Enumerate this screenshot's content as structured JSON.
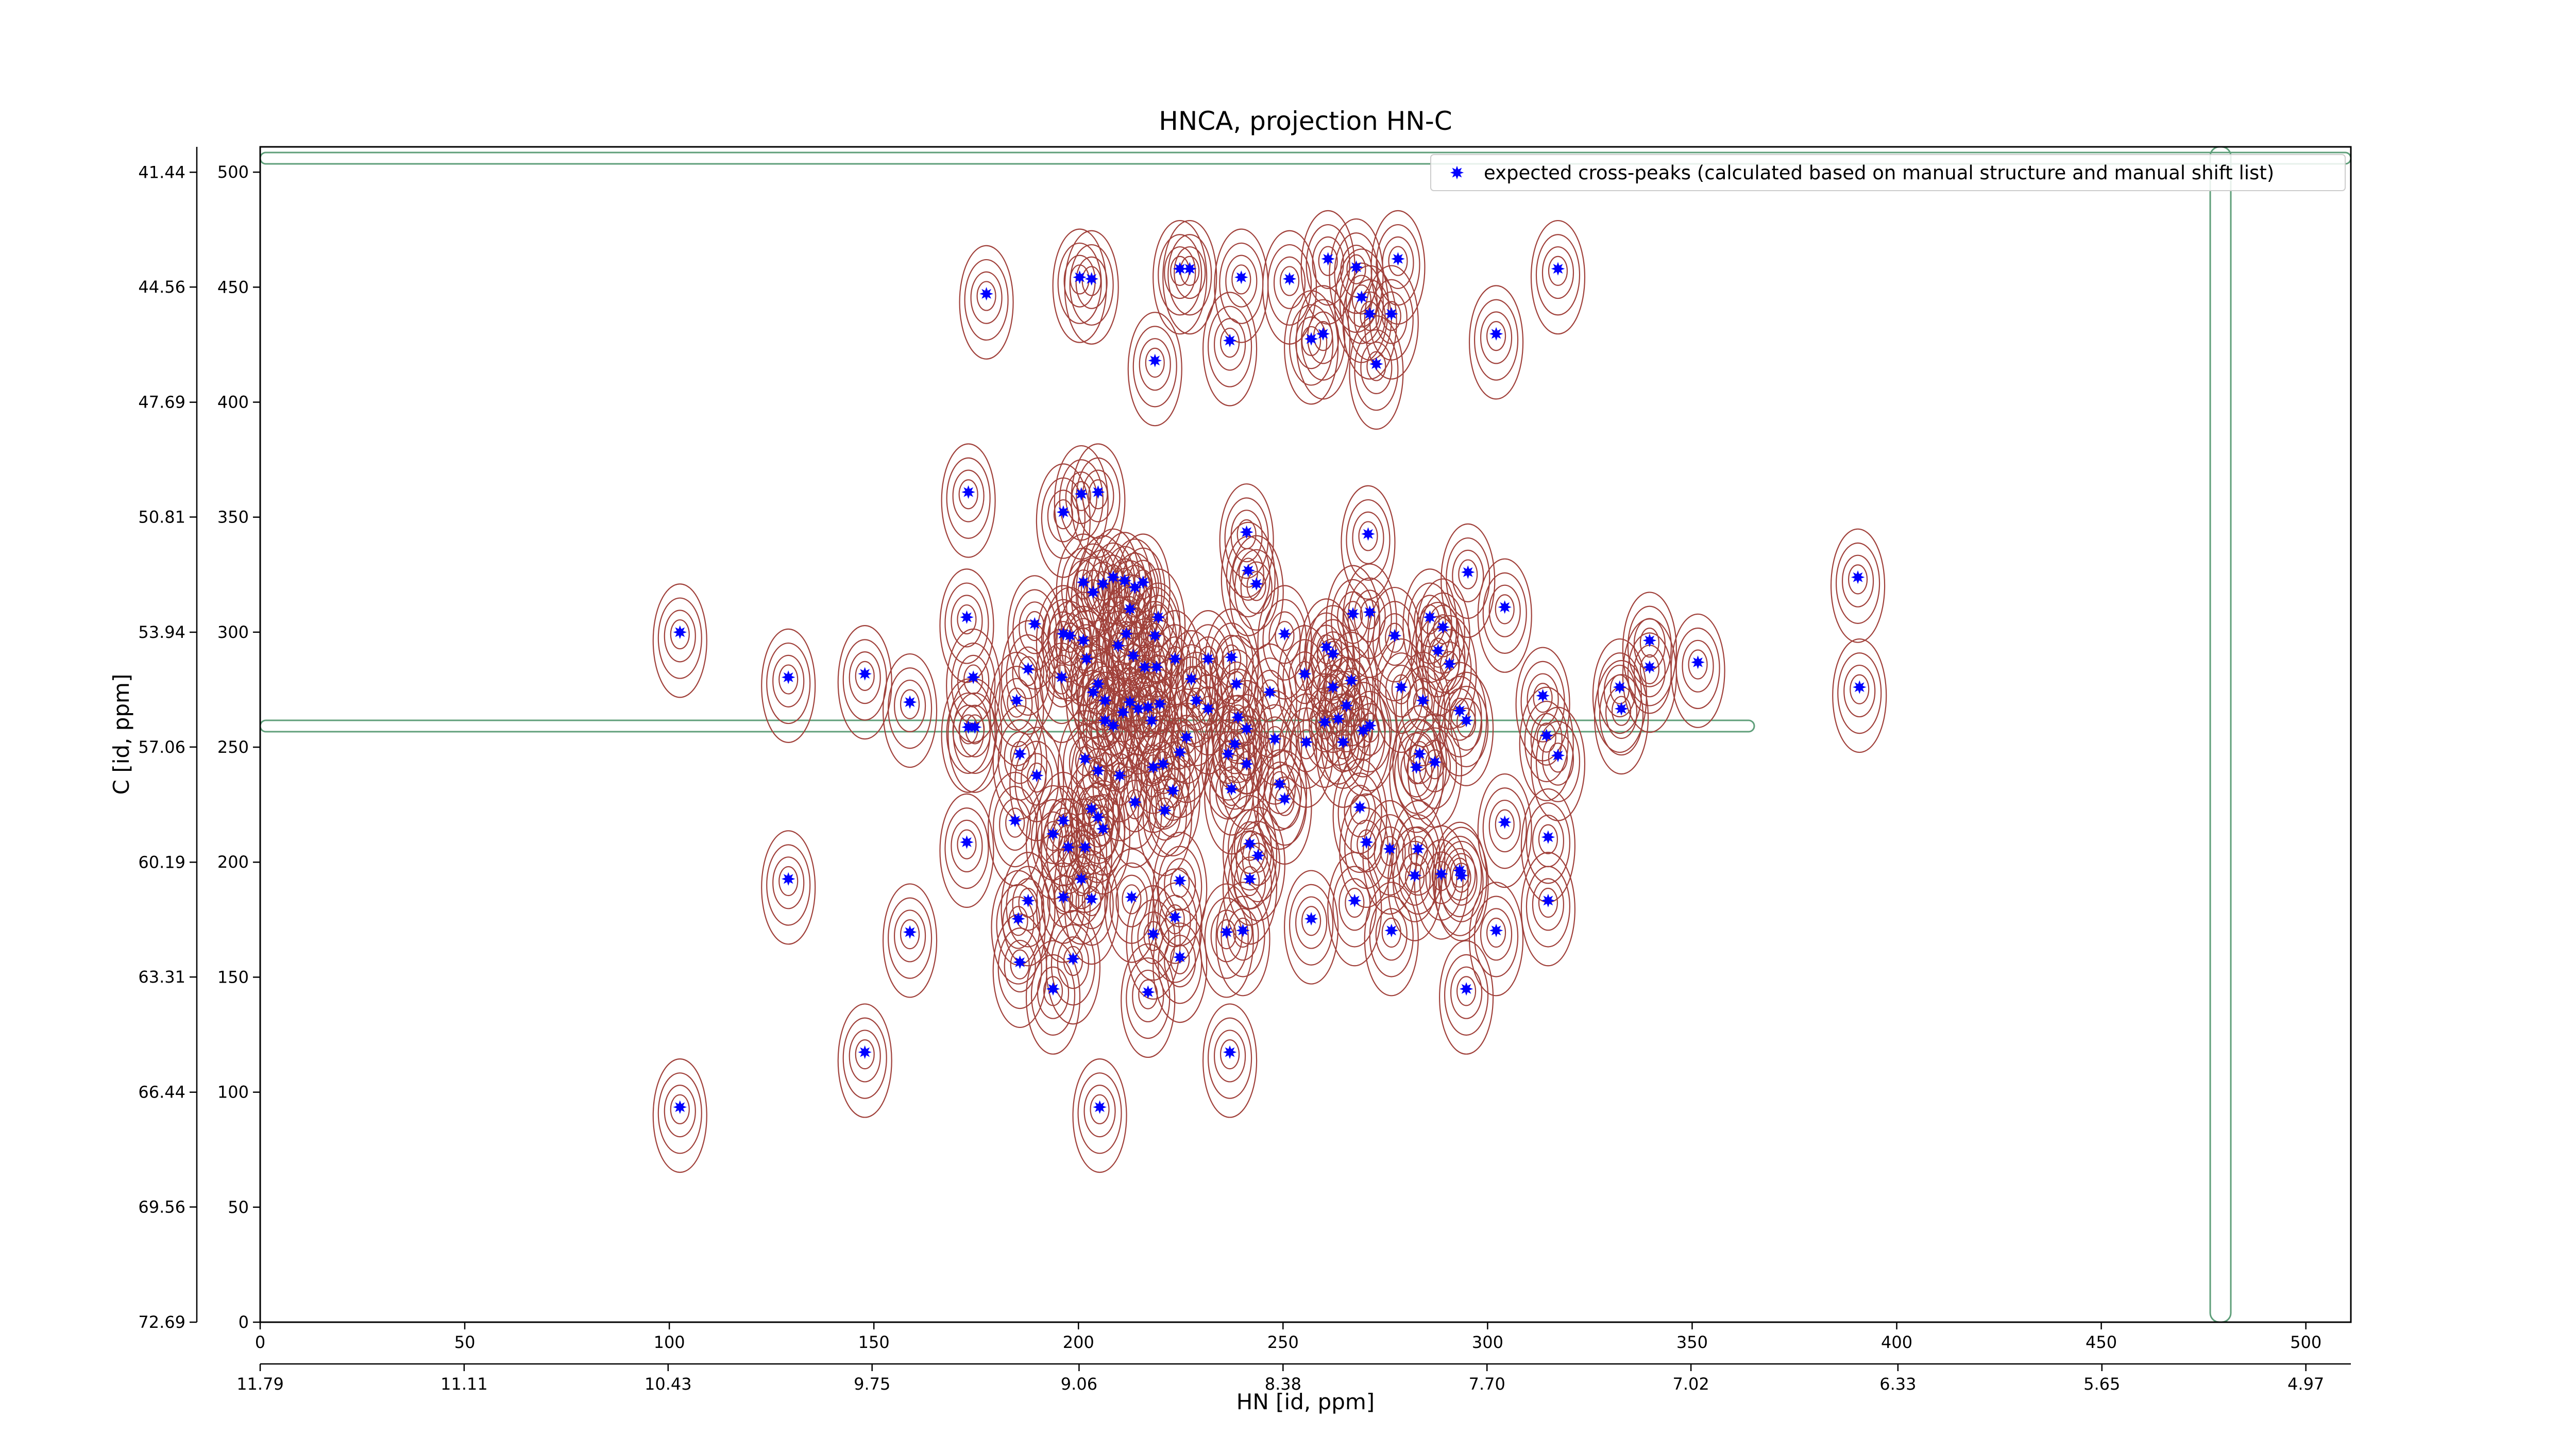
{
  "chart_data": {
    "type": "scatter",
    "title": "HNCA, projection HN-C",
    "xlabel": "HN [id, ppm]",
    "ylabel": "C [id, ppm]",
    "xlim": [
      0,
      511
    ],
    "ylim": [
      0,
      511
    ],
    "xticks": [
      0,
      50,
      100,
      150,
      200,
      250,
      300,
      350,
      400,
      450,
      500
    ],
    "yticks": [
      0,
      50,
      100,
      150,
      200,
      250,
      300,
      350,
      400,
      450,
      500
    ],
    "x2lim": [
      11.79,
      4.82
    ],
    "x2ticks": [
      11.79,
      11.11,
      10.43,
      9.75,
      9.06,
      8.38,
      {
        "value": 7.7,
        "label": "7.70"
      },
      7.02,
      6.33,
      5.65,
      4.97
    ],
    "y2lim": [
      72.69,
      40.75
    ],
    "y2ticks": [
      72.69,
      69.56,
      66.44,
      63.31,
      60.19,
      57.06,
      53.94,
      50.81,
      47.69,
      44.56,
      41.44
    ],
    "legend": "upper right",
    "series": [
      {
        "name": "expected cross-peaks (calculated based on manual structure and manual shift list)",
        "color": "#0000ff",
        "x": [
          177.5,
          200.3,
          203.2,
          224.8,
          227.2,
          239.8,
          251.6,
          261.0,
          267.9,
          278.1,
          317.2,
          269.2,
          271.2,
          276.5,
          237.0,
          256.9,
          259.8,
          272.8,
          302.1,
          218.7,
          173.1,
          196.3,
          200.7,
          204.8,
          241.1,
          270.8,
          241.5,
          243.5,
          295.2,
          390.5,
          102.6,
          129.1,
          147.8,
          158.8,
          172.7,
          174.3,
          173.1,
          174.7,
          187.7,
          189.3,
          184.9,
          185.7,
          196.3,
          197.9,
          201.2,
          195.9,
          202.0,
          203.6,
          204.8,
          206.5,
          201.2,
          203.6,
          206.0,
          208.5,
          211.3,
          213.8,
          215.8,
          212.6,
          211.7,
          219.5,
          218.7,
          209.7,
          213.4,
          216.2,
          219.1,
          223.6,
          212.6,
          214.6,
          217.0,
          217.9,
          219.9,
          206.5,
          208.5,
          210.9,
          227.6,
          231.7,
          237.4,
          238.6,
          228.8,
          231.7,
          239.0,
          241.1,
          246.8,
          250.4,
          255.3,
          260.6,
          262.2,
          266.7,
          265.5,
          263.5,
          269.6,
          271.2,
          271.2,
          267.1,
          262.2,
          277.3,
          278.9,
          284.2,
          285.9,
          287.9,
          290.7,
          293.2,
          294.8,
          289.1,
          304.2,
          313.5,
          314.4,
          317.2,
          332.3,
          332.7,
          339.6,
          339.6,
          351.4,
          390.9,
          201.6,
          189.8,
          204.8,
          210.1,
          218.3,
          220.7,
          224.8,
          226.4,
          236.6,
          238.2,
          248.0,
          241.1,
          249.2,
          250.4,
          255.7,
          260.2,
          264.7,
          268.8,
          282.6,
          287.1,
          283.4,
          172.7,
          184.5,
          193.8,
          196.3,
          197.5,
          201.6,
          203.2,
          204.8,
          206.0,
          213.8,
          221.1,
          223.1,
          237.4,
          241.9,
          243.9,
          270.4,
          276.1,
          283.0,
          288.7,
          293.2,
          304.2,
          314.8,
          129.1,
          158.8,
          185.3,
          187.7,
          196.3,
          203.2,
          200.7,
          213.0,
          224.8,
          223.6,
          218.3,
          236.2,
          240.2,
          241.9,
          256.9,
          267.5,
          276.5,
          282.2,
          293.6,
          302.1,
          314.8,
          185.7,
          193.8,
          198.7,
          217.0,
          224.8,
          237.0,
          205.2,
          147.8,
          102.6,
          294.8
        ],
        "values": [
          447.1,
          454.3,
          453.6,
          458.0,
          458.0,
          454.3,
          453.6,
          462.3,
          458.7,
          462.3,
          458.0,
          445.6,
          438.4,
          438.4,
          426.8,
          427.5,
          429.7,
          416.6,
          429.7,
          418.1,
          360.9,
          352.2,
          360.1,
          360.9,
          343.5,
          342.7,
          326.8,
          321.0,
          326.1,
          323.9,
          300.0,
          280.4,
          281.9,
          269.6,
          306.5,
          280.4,
          258.7,
          258.7,
          284.0,
          303.6,
          270.3,
          247.1,
          299.3,
          298.5,
          296.4,
          280.4,
          288.4,
          273.9,
          277.5,
          270.3,
          321.7,
          317.4,
          321.0,
          323.9,
          322.4,
          319.5,
          321.7,
          310.1,
          299.3,
          306.5,
          298.5,
          294.2,
          289.8,
          284.8,
          284.8,
          288.4,
          269.6,
          266.7,
          267.4,
          261.6,
          268.8,
          261.6,
          259.4,
          265.2,
          279.7,
          288.4,
          289.1,
          277.5,
          270.3,
          266.7,
          263.0,
          258.0,
          273.9,
          299.3,
          281.9,
          293.5,
          276.1,
          279.0,
          268.1,
          262.3,
          257.2,
          259.4,
          308.7,
          308.0,
          290.6,
          298.5,
          276.1,
          270.3,
          306.5,
          292.0,
          286.2,
          265.9,
          261.6,
          302.2,
          310.9,
          272.4,
          255.1,
          246.4,
          276.1,
          266.7,
          296.4,
          284.8,
          286.9,
          276.1,
          244.9,
          237.7,
          239.8,
          237.7,
          241.3,
          242.7,
          247.8,
          254.3,
          247.1,
          251.4,
          253.6,
          242.7,
          234.0,
          227.5,
          252.2,
          260.9,
          252.2,
          223.9,
          241.3,
          243.5,
          247.1,
          208.7,
          218.1,
          212.3,
          218.1,
          206.5,
          206.5,
          223.2,
          219.5,
          214.5,
          226.1,
          222.5,
          231.1,
          231.9,
          208.0,
          202.9,
          208.7,
          205.8,
          205.8,
          194.9,
          196.4,
          217.4,
          210.9,
          192.7,
          169.6,
          175.4,
          183.3,
          184.8,
          184.0,
          192.7,
          184.8,
          192.0,
          176.1,
          168.8,
          169.6,
          170.3,
          192.7,
          175.4,
          183.3,
          170.3,
          194.2,
          194.2,
          170.3,
          183.3,
          156.5,
          144.9,
          158.0,
          143.5,
          158.7,
          117.4,
          93.5,
          117.4,
          93.5,
          144.9
        ]
      }
    ]
  }
}
